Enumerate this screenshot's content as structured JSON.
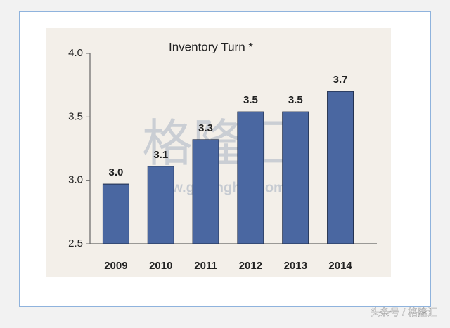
{
  "chart_data": {
    "type": "bar",
    "title": "Inventory Turn *",
    "categories": [
      "2009",
      "2010",
      "2011",
      "2012",
      "2013",
      "2014"
    ],
    "values": [
      2.97,
      3.11,
      3.32,
      3.54,
      3.54,
      3.7
    ],
    "value_labels": [
      "3.0",
      "3.1",
      "3.3",
      "3.5",
      "3.5",
      "3.7"
    ],
    "color": "#4a67a1",
    "ylim": [
      2.5,
      4.0
    ],
    "yticks": [
      2.5,
      {
        "value": 3,
        "label": "3.0"
      },
      3.5,
      {
        "value": 4,
        "label": "4.0"
      }
    ],
    "grid": false,
    "watermark": [
      "格隆汇",
      "www.gelonghui.com"
    ],
    "credit": "头条号 / 格隆汇"
  }
}
